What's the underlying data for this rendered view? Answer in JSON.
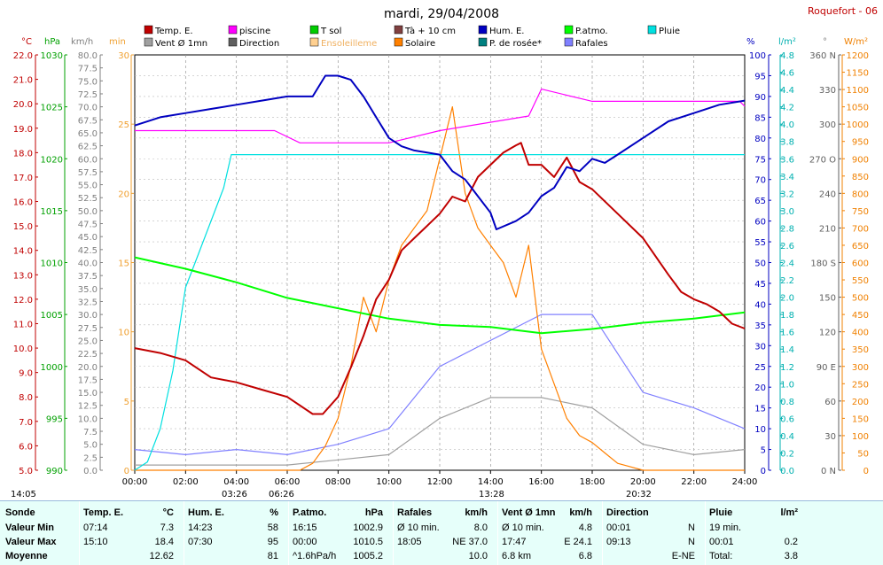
{
  "header": {
    "title": "mardi, 29/04/2008",
    "station": "Roquefort - 06"
  },
  "legend": [
    {
      "label": "Temp. E.",
      "color": "#c00000"
    },
    {
      "label": "piscine",
      "color": "#ff00ff"
    },
    {
      "label": "T sol",
      "color": "#00cc00"
    },
    {
      "label": "Tà + 10 cm",
      "color": "#804040"
    },
    {
      "label": "Hum. E.",
      "color": "#0000c0"
    },
    {
      "label": "P.atmo.",
      "color": "#00ff00"
    },
    {
      "label": "Pluie",
      "color": "#00e0e0"
    },
    {
      "label": "Vent Ø 1mn",
      "color": "#a0a0a0"
    },
    {
      "label": "Direction",
      "color": "#606060"
    },
    {
      "label": "Ensoleilleme",
      "color": "#ffd090"
    },
    {
      "label": "Solaire",
      "color": "#ff8000"
    },
    {
      "label": "P. de rosée*",
      "color": "#008080"
    },
    {
      "label": "Rafales",
      "color": "#8080ff"
    }
  ],
  "axes": {
    "temp": {
      "unit": "°C",
      "ticks": [
        "22.0",
        "21.0",
        "20.0",
        "19.0",
        "18.0",
        "17.0",
        "16.0",
        "15.0",
        "14.0",
        "13.0",
        "12.0",
        "11.0",
        "10.0",
        "9.0",
        "8.0",
        "7.0",
        "6.0",
        "5.0"
      ]
    },
    "press": {
      "unit": "hPa",
      "ticks": [
        "1030",
        "1025",
        "1020",
        "1015",
        "1010",
        "1005",
        "1000",
        "995",
        "990"
      ]
    },
    "wind": {
      "unit": "km/h",
      "ticks": [
        "80.0",
        "77.5",
        "75.0",
        "72.5",
        "70.0",
        "67.5",
        "65.0",
        "62.5",
        "60.0",
        "57.5",
        "55.0",
        "52.5",
        "50.0",
        "47.5",
        "45.0",
        "42.5",
        "40.0",
        "37.5",
        "35.0",
        "32.5",
        "30.0",
        "27.5",
        "25.0",
        "22.5",
        "20.0",
        "17.5",
        "15.0",
        "12.5",
        "10.0",
        "7.5",
        "5.0",
        "2.5",
        "0.0"
      ]
    },
    "minutes": {
      "unit": "min",
      "ticks": [
        "30",
        "25",
        "20",
        "15",
        "10",
        "5",
        "0"
      ]
    },
    "hum": {
      "unit": "%",
      "ticks": [
        "100",
        "95",
        "90",
        "85",
        "80",
        "75",
        "70",
        "65",
        "60",
        "55",
        "50",
        "45",
        "40",
        "35",
        "30",
        "25",
        "20",
        "15",
        "10",
        "5",
        "0"
      ]
    },
    "rain": {
      "unit": "l/m²",
      "ticks": [
        "4.8",
        "4.6",
        "4.4",
        "4.2",
        "4.0",
        "3.8",
        "3.6",
        "3.4",
        "3.2",
        "3.0",
        "2.8",
        "2.6",
        "2.4",
        "2.2",
        "2.0",
        "1.8",
        "1.6",
        "1.4",
        "1.2",
        "1.0",
        "0.8",
        "0.6",
        "0.4",
        "0.2",
        "0.0"
      ]
    },
    "dir": {
      "unit": "°",
      "ticks": [
        "360 N",
        "330",
        "300",
        "270 O",
        "240",
        "210",
        "180 S",
        "150",
        "120",
        "90 E",
        "60",
        "30",
        "0 N"
      ]
    },
    "solar": {
      "unit": "W/m²",
      "ticks": [
        "1200",
        "1150",
        "1100",
        "1050",
        "1000",
        "950",
        "900",
        "850",
        "800",
        "750",
        "700",
        "650",
        "600",
        "550",
        "500",
        "450",
        "400",
        "350",
        "300",
        "250",
        "200",
        "150",
        "100",
        "50",
        "0"
      ]
    },
    "time": {
      "ticks": [
        "00:00",
        "02:00",
        "04:00",
        "06:00",
        "08:00",
        "10:00",
        "12:00",
        "14:00",
        "16:00",
        "18:00",
        "20:00",
        "22:00",
        "24:00"
      ]
    }
  },
  "markers": {
    "left": "14:05",
    "m1": "03:26",
    "m2": "06:26",
    "m3": "13:28",
    "m4": "20:32"
  },
  "chart_data": {
    "type": "line",
    "x_unit": "hour",
    "series": [
      {
        "name": "Temp. E.",
        "axis": "temp",
        "x": [
          0,
          1,
          2,
          3,
          4,
          5,
          6,
          7,
          7.4,
          8,
          8.5,
          9,
          9.5,
          10,
          10.5,
          11,
          11.5,
          12,
          12.5,
          13,
          13.5,
          14,
          14.5,
          15,
          15.2,
          15.5,
          16,
          16.5,
          17,
          17.5,
          18,
          19,
          20,
          21,
          21.5,
          22,
          22.5,
          23,
          23.5,
          24
        ],
        "y": [
          10,
          9.8,
          9.5,
          8.8,
          8.6,
          8.3,
          8.0,
          7.3,
          7.3,
          8.0,
          9.2,
          10.5,
          12.0,
          12.8,
          14.0,
          14.5,
          15.0,
          15.5,
          16.2,
          16.0,
          17.0,
          17.5,
          18.0,
          18.3,
          18.4,
          17.5,
          17.5,
          17.0,
          17.8,
          16.8,
          16.5,
          15.5,
          14.5,
          13.0,
          12.3,
          12.0,
          11.8,
          11.5,
          11.0,
          10.8
        ]
      },
      {
        "name": "Hum. E.",
        "axis": "hum",
        "x": [
          0,
          1,
          2,
          3,
          4,
          5,
          6,
          7,
          7.5,
          8,
          8.5,
          9,
          9.5,
          10,
          10.5,
          11,
          12,
          12.5,
          13,
          13.5,
          14,
          14.23,
          15,
          15.5,
          16,
          16.5,
          17,
          17.5,
          18,
          18.5,
          19,
          20,
          21,
          22,
          23,
          24
        ],
        "y": [
          83,
          85,
          86,
          87,
          88,
          89,
          90,
          90,
          95,
          95,
          94,
          90,
          85,
          80,
          78,
          77,
          76,
          72,
          70,
          66,
          62,
          58,
          60,
          62,
          66,
          68,
          73,
          72,
          75,
          74,
          76,
          80,
          84,
          86,
          88,
          89
        ]
      },
      {
        "name": "P.atmo.",
        "axis": "press",
        "x": [
          0,
          2,
          4,
          6,
          8,
          10,
          12,
          14,
          16,
          18,
          20,
          22,
          24
        ],
        "y": [
          1010.5,
          1009.4,
          1008.1,
          1006.6,
          1005.6,
          1004.6,
          1004.0,
          1003.8,
          1003.2,
          1003.6,
          1004.2,
          1004.6,
          1005.2
        ]
      },
      {
        "name": "Pluie",
        "axis": "rain",
        "x": [
          0,
          0.5,
          1,
          1.5,
          2,
          2.5,
          3,
          3.5,
          3.8,
          5,
          10,
          15,
          20,
          24
        ],
        "y": [
          0,
          0.1,
          0.5,
          1.2,
          2.2,
          2.6,
          3.0,
          3.4,
          3.8,
          3.8,
          3.8,
          3.8,
          3.8,
          3.8
        ]
      },
      {
        "name": "piscine",
        "axis": "temp",
        "x": [
          0,
          5.5,
          6.5,
          8,
          10,
          12,
          15.5,
          16,
          18,
          20,
          22,
          23.8,
          24
        ],
        "y": [
          18.9,
          18.9,
          18.4,
          18.4,
          18.4,
          18.9,
          19.5,
          20.6,
          20.1,
          20.1,
          20.1,
          20.1,
          19.9
        ]
      },
      {
        "name": "Solaire",
        "axis": "solar",
        "x": [
          0,
          6.5,
          7,
          7.5,
          8,
          8.5,
          9,
          9.5,
          10,
          10.5,
          11,
          11.5,
          12,
          12.5,
          13,
          13.5,
          14,
          14.5,
          15,
          15.5,
          16,
          16.5,
          17,
          17.5,
          18,
          18.5,
          19,
          19.5,
          20,
          21,
          24
        ],
        "y": [
          0,
          0,
          20,
          70,
          150,
          300,
          500,
          400,
          550,
          650,
          700,
          750,
          900,
          1050,
          800,
          700,
          650,
          600,
          500,
          650,
          350,
          250,
          150,
          100,
          80,
          50,
          20,
          10,
          0,
          0,
          0
        ]
      },
      {
        "name": "Rafales",
        "axis": "wind",
        "x": [
          0,
          2,
          4,
          6,
          8,
          10,
          12,
          14,
          16,
          18,
          20,
          22,
          24
        ],
        "y": [
          4,
          3,
          4,
          3,
          5,
          8,
          20,
          25,
          30,
          30,
          15,
          12,
          8
        ]
      },
      {
        "name": "Vent Ø 1mn",
        "axis": "wind",
        "x": [
          0,
          2,
          4,
          6,
          8,
          10,
          12,
          14,
          16,
          18,
          20,
          22,
          24
        ],
        "y": [
          1,
          1,
          1,
          1,
          2,
          3,
          10,
          14,
          14,
          12,
          5,
          3,
          4
        ]
      }
    ],
    "ylim": {
      "temp": [
        5,
        22
      ],
      "press": [
        990,
        1030
      ],
      "wind": [
        0,
        80
      ],
      "hum": [
        0,
        100
      ],
      "rain": [
        0,
        5
      ],
      "solar": [
        0,
        1200
      ],
      "minutes": [
        0,
        30
      ]
    },
    "xlim": [
      0,
      24
    ]
  },
  "summary": {
    "cols": [
      {
        "label": "Sonde",
        "rows": [
          "Valeur Min",
          "Valeur Max",
          "Moyenne"
        ]
      },
      {
        "label": "Temp. E.",
        "unit": "°C",
        "rows": [
          [
            "07:14",
            "7.3"
          ],
          [
            "15:10",
            "18.4"
          ],
          [
            "",
            "12.62"
          ]
        ]
      },
      {
        "label": "Hum. E.",
        "unit": "%",
        "rows": [
          [
            "14:23",
            "58"
          ],
          [
            "07:30",
            "95"
          ],
          [
            "",
            "81"
          ]
        ]
      },
      {
        "label": "P.atmo.",
        "unit": "hPa",
        "rows": [
          [
            "16:15",
            "1002.9"
          ],
          [
            "00:00",
            "1010.5"
          ],
          [
            "^1.6hPa/h",
            "1005.2"
          ]
        ]
      },
      {
        "label": "Rafales",
        "unit": "km/h",
        "rows": [
          [
            "Ø 10 min.",
            "8.0"
          ],
          [
            "18:05",
            "NE 37.0"
          ],
          [
            "",
            "10.0"
          ]
        ]
      },
      {
        "label": "Vent Ø 1mn",
        "unit": "km/h",
        "rows": [
          [
            "Ø 10 min.",
            "4.8"
          ],
          [
            "17:47",
            "E 24.1"
          ],
          [
            "6.8 km",
            "6.8"
          ]
        ]
      },
      {
        "label": "Direction",
        "unit": "",
        "rows": [
          [
            "00:01",
            "N"
          ],
          [
            "09:13",
            "N"
          ],
          [
            "",
            "E-NE"
          ]
        ]
      },
      {
        "label": "Pluie",
        "unit": "l/m²",
        "rows": [
          [
            "19 min.",
            ""
          ],
          [
            "00:01",
            "0.2"
          ],
          [
            "Total:",
            "3.8"
          ]
        ]
      }
    ]
  }
}
